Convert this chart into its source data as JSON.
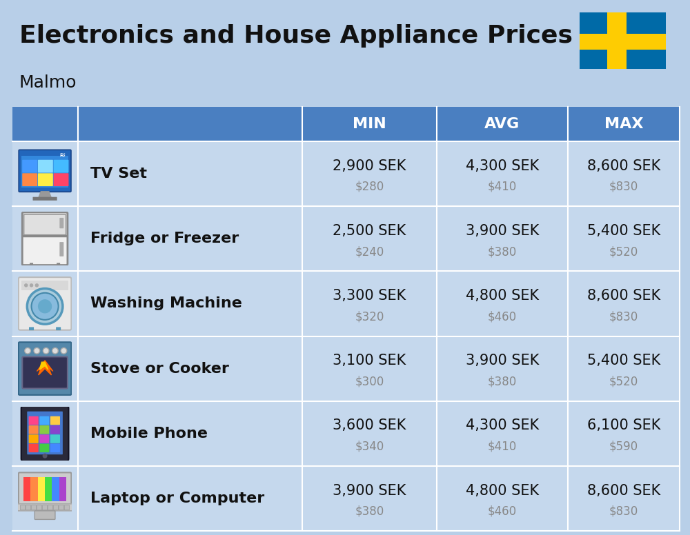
{
  "title": "Electronics and House Appliance Prices",
  "subtitle": "Malmo",
  "background_color": "#b8cfe8",
  "header_color": "#4a7fc1",
  "header_text_color": "#ffffff",
  "row_bg_color": "#c5d8ed",
  "text_color": "#111111",
  "usd_color": "#888888",
  "col_headers": [
    "MIN",
    "AVG",
    "MAX"
  ],
  "items": [
    {
      "name": "TV Set",
      "min_sek": "2,900 SEK",
      "min_usd": "$280",
      "avg_sek": "4,300 SEK",
      "avg_usd": "$410",
      "max_sek": "8,600 SEK",
      "max_usd": "$830"
    },
    {
      "name": "Fridge or Freezer",
      "min_sek": "2,500 SEK",
      "min_usd": "$240",
      "avg_sek": "3,900 SEK",
      "avg_usd": "$380",
      "max_sek": "5,400 SEK",
      "max_usd": "$520"
    },
    {
      "name": "Washing Machine",
      "min_sek": "3,300 SEK",
      "min_usd": "$320",
      "avg_sek": "4,800 SEK",
      "avg_usd": "$460",
      "max_sek": "8,600 SEK",
      "max_usd": "$830"
    },
    {
      "name": "Stove or Cooker",
      "min_sek": "3,100 SEK",
      "min_usd": "$300",
      "avg_sek": "3,900 SEK",
      "avg_usd": "$380",
      "max_sek": "5,400 SEK",
      "max_usd": "$520"
    },
    {
      "name": "Mobile Phone",
      "min_sek": "3,600 SEK",
      "min_usd": "$340",
      "avg_sek": "4,300 SEK",
      "avg_usd": "$410",
      "max_sek": "6,100 SEK",
      "max_usd": "$590"
    },
    {
      "name": "Laptop or Computer",
      "min_sek": "3,900 SEK",
      "min_usd": "$380",
      "avg_sek": "4,800 SEK",
      "avg_usd": "$460",
      "max_sek": "8,600 SEK",
      "max_usd": "$830"
    }
  ],
  "flag_blue": "#006AA7",
  "flag_yellow": "#FECC02",
  "title_fontsize": 26,
  "subtitle_fontsize": 18,
  "header_fontsize": 16,
  "item_name_fontsize": 16,
  "sek_fontsize": 15,
  "usd_fontsize": 12
}
